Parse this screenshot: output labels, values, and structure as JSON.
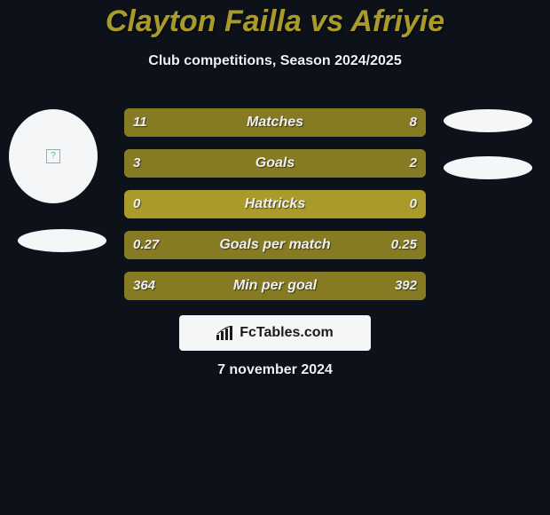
{
  "colors": {
    "background": "#0c111a",
    "accent": "#a99a2a",
    "title": "#a99a2a",
    "text": "#eef0f4",
    "bar_track": "#a99a2a",
    "bar_left_fill": "#867b22",
    "bar_right_fill": "#867b22",
    "avatar_bg": "#f4f6f8",
    "shadow": "#f4f6f8",
    "logo_bg": "#f4f6f8",
    "logo_text": "#1a1a1a"
  },
  "title": "Clayton Failla vs Afriyie",
  "subtitle": "Club competitions, Season 2024/2025",
  "date": "7 november 2024",
  "logo": {
    "text": "FcTables.com"
  },
  "rows": [
    {
      "label": "Matches",
      "left": "11",
      "right": "8",
      "left_pct": 58,
      "right_pct": 42
    },
    {
      "label": "Goals",
      "left": "3",
      "right": "2",
      "left_pct": 60,
      "right_pct": 40
    },
    {
      "label": "Hattricks",
      "left": "0",
      "right": "0",
      "left_pct": 0,
      "right_pct": 0
    },
    {
      "label": "Goals per match",
      "left": "0.27",
      "right": "0.25",
      "left_pct": 52,
      "right_pct": 48
    },
    {
      "label": "Min per goal",
      "left": "364",
      "right": "392",
      "left_pct": 48,
      "right_pct": 52
    }
  ]
}
